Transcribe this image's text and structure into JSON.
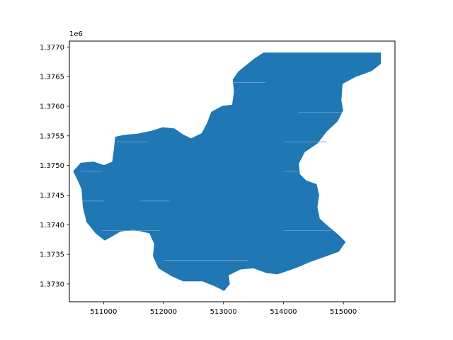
{
  "chart_data": {
    "type": "area",
    "title": "",
    "xlabel": "",
    "ylabel": "",
    "y_offset_label": "1e6",
    "xlim": [
      510430,
      515860
    ],
    "ylim": [
      1372700,
      1377100
    ],
    "x_ticks": [
      {
        "value": 511000,
        "label": "511000"
      },
      {
        "value": 512000,
        "label": "512000"
      },
      {
        "value": 513000,
        "label": "513000"
      },
      {
        "value": 514000,
        "label": "514000"
      },
      {
        "value": 515000,
        "label": "515000"
      }
    ],
    "y_ticks": [
      {
        "value": 1373000,
        "label": "1.3730"
      },
      {
        "value": 1373500,
        "label": "1.3735"
      },
      {
        "value": 1374000,
        "label": "1.3740"
      },
      {
        "value": 1374500,
        "label": "1.3745"
      },
      {
        "value": 1375000,
        "label": "1.3750"
      },
      {
        "value": 1375500,
        "label": "1.3755"
      },
      {
        "value": 1376000,
        "label": "1.3760"
      },
      {
        "value": 1376500,
        "label": "1.3765"
      },
      {
        "value": 1377000,
        "label": "1.3770"
      }
    ],
    "grid": false,
    "fill_color": "#1f77b4",
    "series": [
      {
        "polygon": [
          [
            513670,
            1376900
          ],
          [
            515620,
            1376900
          ],
          [
            515620,
            1376720
          ],
          [
            515470,
            1376600
          ],
          [
            515200,
            1376500
          ],
          [
            514980,
            1376380
          ],
          [
            514960,
            1376100
          ],
          [
            514990,
            1375930
          ],
          [
            514900,
            1375750
          ],
          [
            514720,
            1375580
          ],
          [
            514570,
            1375380
          ],
          [
            514350,
            1375230
          ],
          [
            514250,
            1375030
          ],
          [
            514270,
            1374850
          ],
          [
            514380,
            1374740
          ],
          [
            514550,
            1374680
          ],
          [
            514590,
            1374500
          ],
          [
            514560,
            1374300
          ],
          [
            514600,
            1374100
          ],
          [
            514720,
            1373990
          ],
          [
            514910,
            1373830
          ],
          [
            515030,
            1373710
          ],
          [
            514920,
            1373550
          ],
          [
            514730,
            1373480
          ],
          [
            514450,
            1373380
          ],
          [
            514270,
            1373300
          ],
          [
            514080,
            1373230
          ],
          [
            513900,
            1373170
          ],
          [
            513720,
            1373190
          ],
          [
            513500,
            1373270
          ],
          [
            513280,
            1373250
          ],
          [
            513080,
            1373150
          ],
          [
            513100,
            1373000
          ],
          [
            513010,
            1372890
          ],
          [
            512850,
            1372970
          ],
          [
            512650,
            1373050
          ],
          [
            512330,
            1373050
          ],
          [
            512130,
            1373140
          ],
          [
            511920,
            1373270
          ],
          [
            511830,
            1373470
          ],
          [
            511850,
            1373680
          ],
          [
            511770,
            1373860
          ],
          [
            511500,
            1373920
          ],
          [
            511280,
            1373890
          ],
          [
            511130,
            1373800
          ],
          [
            511020,
            1373740
          ],
          [
            510870,
            1373860
          ],
          [
            510720,
            1374050
          ],
          [
            510660,
            1374300
          ],
          [
            510640,
            1374600
          ],
          [
            510560,
            1374780
          ],
          [
            510500,
            1374900
          ],
          [
            510620,
            1375040
          ],
          [
            510830,
            1375060
          ],
          [
            511010,
            1375000
          ],
          [
            511150,
            1375060
          ],
          [
            511180,
            1375280
          ],
          [
            511200,
            1375480
          ],
          [
            511340,
            1375510
          ],
          [
            511570,
            1375530
          ],
          [
            511800,
            1375580
          ],
          [
            511990,
            1375640
          ],
          [
            512180,
            1375620
          ],
          [
            512320,
            1375520
          ],
          [
            512460,
            1375450
          ],
          [
            512640,
            1375540
          ],
          [
            512730,
            1375710
          ],
          [
            512800,
            1375900
          ],
          [
            512980,
            1376000
          ],
          [
            513150,
            1376020
          ],
          [
            513180,
            1376250
          ],
          [
            513160,
            1376450
          ],
          [
            513250,
            1376580
          ],
          [
            513420,
            1376720
          ],
          [
            513530,
            1376810
          ]
        ]
      }
    ],
    "gap_lines": [
      {
        "y": 1376400,
        "x": [
          513150,
          513700
        ]
      },
      {
        "y": 1375900,
        "x": [
          514250,
          514980
        ]
      },
      {
        "y": 1375400,
        "x": [
          511220,
          511750
        ]
      },
      {
        "y": 1375400,
        "x": [
          514000,
          514720
        ]
      },
      {
        "y": 1374900,
        "x": [
          510620,
          510980
        ]
      },
      {
        "y": 1374900,
        "x": [
          514000,
          514260
        ]
      },
      {
        "y": 1374400,
        "x": [
          510650,
          511000
        ]
      },
      {
        "y": 1374400,
        "x": [
          511600,
          512100
        ]
      },
      {
        "y": 1373900,
        "x": [
          510960,
          511950
        ]
      },
      {
        "y": 1373900,
        "x": [
          514000,
          514800
        ]
      },
      {
        "y": 1373400,
        "x": [
          512000,
          513420
        ]
      }
    ]
  }
}
